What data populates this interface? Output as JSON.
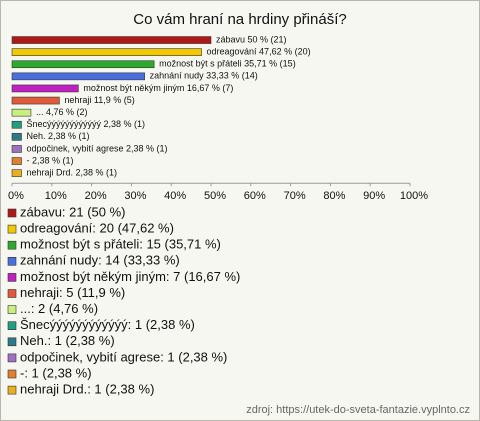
{
  "chart_data": {
    "type": "hbar",
    "title": "Co vám hraní na hrdiny přináší?",
    "categories": [
      "zábavu",
      "odreagování",
      "možnost být s přáteli",
      "zahnání nudy",
      "možnost být někým jiným",
      "nehraji",
      "...",
      "Šnecýýýýýýýýýýýý",
      "Neh.",
      "odpočinek, vybití agrese",
      "-",
      "nehraji Drd."
    ],
    "values": [
      50,
      47.62,
      35.71,
      33.33,
      16.67,
      11.9,
      4.76,
      2.38,
      2.38,
      2.38,
      2.38,
      2.38
    ],
    "value_labels": [
      "zábavu 50 % (21)",
      "odreagování 47,62 % (20)",
      "možnost být s přáteli 35,71 % (15)",
      "zahnání nudy 33,33 % (14)",
      "možnost být někým jiným 16,67 % (7)",
      "nehraji 11,9 % (5)",
      "... 4,76 % (2)",
      "Šnecýýýýýýýýýýýý 2,38 % (1)",
      "Neh. 2,38 % (1)",
      "odpočinek, vybití agrese 2,38 % (1)",
      "- 2,38 % (1)",
      "nehraji Drd. 2,38 % (1)"
    ],
    "legend_labels": [
      "zábavu: 21 (50 %)",
      "odreagování: 20 (47,62 %)",
      "možnost být s přáteli: 15 (35,71 %)",
      "zahnání nudy: 14 (33,33 %)",
      "možnost být někým jiným: 7 (16,67 %)",
      "nehraji: 5 (11,9 %)",
      "...: 2 (4,76 %)",
      "Šnecýýýýýýýýýýýý: 1 (2,38 %)",
      "Neh.: 1 (2,38 %)",
      "odpočinek, vybití agrese: 1 (2,38 %)",
      "-: 1 (2,38 %)",
      "nehraji Drd.: 1 (2,38 %)"
    ],
    "colors": [
      "#b01818",
      "#f2c800",
      "#2caa2c",
      "#4a6ee0",
      "#c020c0",
      "#e05a3a",
      "#c8f080",
      "#20a080",
      "#2a7a8a",
      "#a070c0",
      "#e08030",
      "#e8b020"
    ],
    "xlim": [
      0,
      100
    ],
    "xticks": [
      {
        "value": 0,
        "label": "0%"
      },
      {
        "value": 10,
        "label": "10%"
      },
      {
        "value": 20,
        "label": "20%"
      },
      {
        "value": 30,
        "label": "30%"
      },
      {
        "value": 40,
        "label": "40%"
      },
      {
        "value": 50,
        "label": "50%"
      },
      {
        "value": 60,
        "label": "60%"
      },
      {
        "value": 70,
        "label": "70%"
      },
      {
        "value": 80,
        "label": "80%"
      },
      {
        "value": 90,
        "label": "90%"
      },
      {
        "value": 100,
        "label": "100%"
      }
    ],
    "grid": false,
    "source": "zdroj: https://utek-do-sveta-fantazie.vyplnto.cz"
  }
}
